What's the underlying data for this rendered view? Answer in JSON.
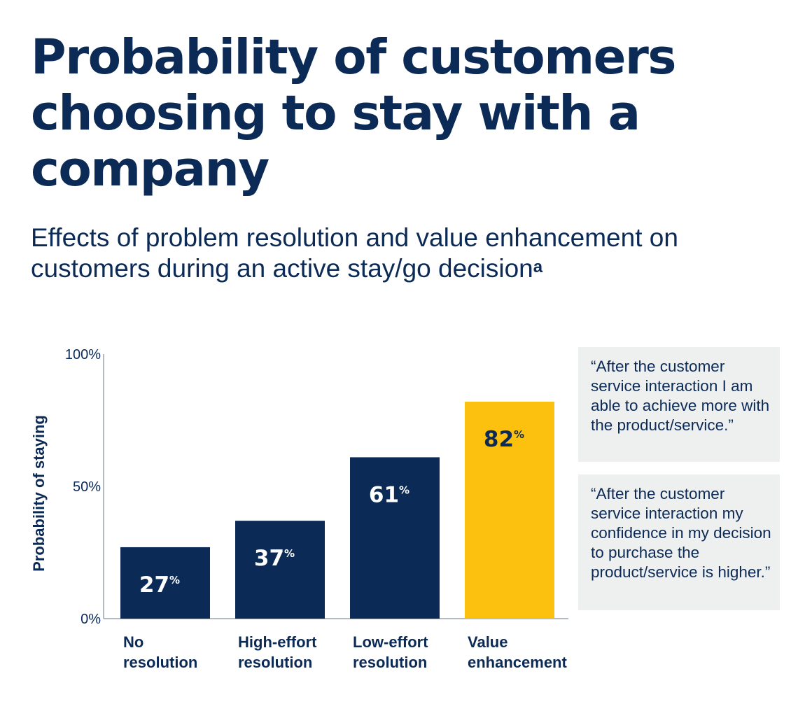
{
  "header": {
    "title": "Probability of customers choosing to stay with a company",
    "subtitle": "Effects of problem resolution and value enhancement on customers during an active stay/go decision",
    "subtitle_footnote": "a"
  },
  "chart_data": {
    "type": "bar",
    "title": "Probability of customers choosing to stay with a company",
    "ylabel": "Probability of staying",
    "xlabel": "",
    "ylim": [
      0,
      100
    ],
    "yticks": [
      "0%",
      "50%",
      "100%"
    ],
    "ytick_values": [
      0,
      50,
      100
    ],
    "categories": [
      [
        "No",
        "resolution"
      ],
      [
        "High-effort",
        "resolution"
      ],
      [
        "Low-effort",
        "resolution"
      ],
      [
        "Value",
        "enhancement"
      ]
    ],
    "values": [
      27,
      37,
      61,
      82
    ],
    "value_labels": [
      "27",
      "37",
      "61",
      "82"
    ],
    "value_unit": "%",
    "colors": [
      "#0c2a56",
      "#0c2a56",
      "#0c2a56",
      "#fcc10f"
    ],
    "label_colors": [
      "#ffffff",
      "#ffffff",
      "#ffffff",
      "#0c2a56"
    ],
    "grid": false
  },
  "quotes": [
    "“After the customer service interaction I am able to achieve more with the product/service.”",
    "“After the customer service interaction my confidence in my decision to purchase the product/service is higher.”"
  ],
  "colors": {
    "navy": "#0c2a56",
    "gold": "#fcc10f",
    "quote_bg": "#eef0f0"
  }
}
